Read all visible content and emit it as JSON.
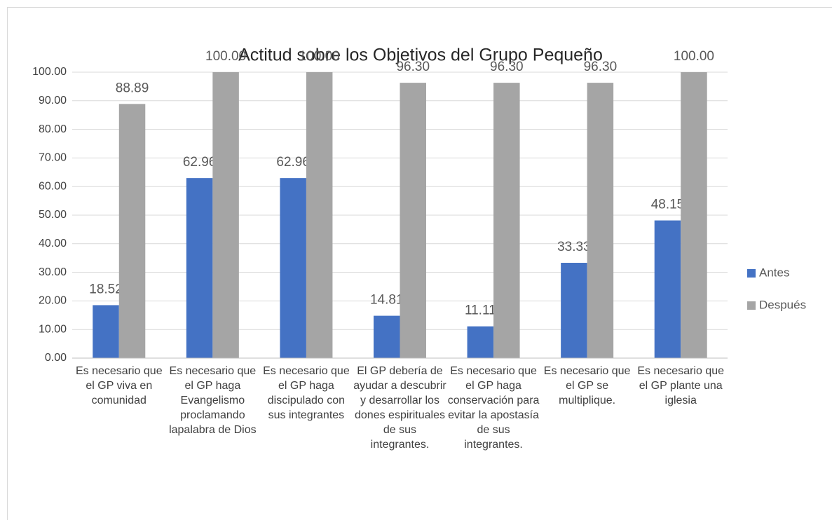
{
  "chart_data": {
    "type": "bar",
    "title": "Actitud sobre los Objetivos del Grupo Pequeño",
    "categories": [
      "Es necesario que el GP viva en comunidad",
      "Es necesario que el GP haga Evangelismo proclamando lapalabra de Dios",
      "Es necesario que el GP haga discipulado con sus integrantes",
      "El GP debería de ayudar a descubrir y desarrollar los dones espirituales de sus integrantes.",
      "Es necesario que el GP haga conservación para evitar la apostasía de sus integrantes.",
      "Es necesario que el GP se multiplique.",
      "Es necesario que el GP plante una iglesia"
    ],
    "series": [
      {
        "name": "Antes",
        "color": "#4472c4",
        "values": [
          18.52,
          62.96,
          62.96,
          14.81,
          11.11,
          33.33,
          48.15
        ],
        "value_labels": [
          "18.52",
          "62.96",
          "62.96",
          "14.81",
          "11.11",
          "33.33",
          "48.15"
        ]
      },
      {
        "name": "Después",
        "color": "#a5a5a5",
        "values": [
          88.89,
          100,
          100,
          96.3,
          96.3,
          96.3,
          100
        ],
        "value_labels": [
          "88.89",
          "100.00",
          "100.00",
          "96.30",
          "96.30",
          "96.30",
          "100.00"
        ]
      }
    ],
    "ylim": [
      0,
      100
    ],
    "yticks": [
      {
        "value": 0,
        "label": "0.00"
      },
      {
        "value": 10,
        "label": "10.00"
      },
      {
        "value": 20,
        "label": "20.00"
      },
      {
        "value": 30,
        "label": "30.00"
      },
      {
        "value": 40,
        "label": "40.00"
      },
      {
        "value": 50,
        "label": "50.00"
      },
      {
        "value": 60,
        "label": "60.00"
      },
      {
        "value": 70,
        "label": "70.00"
      },
      {
        "value": 80,
        "label": "80.00"
      },
      {
        "value": 90,
        "label": "90.00"
      },
      {
        "value": 100,
        "label": "100.00"
      }
    ],
    "grid": true,
    "legend": "right"
  }
}
